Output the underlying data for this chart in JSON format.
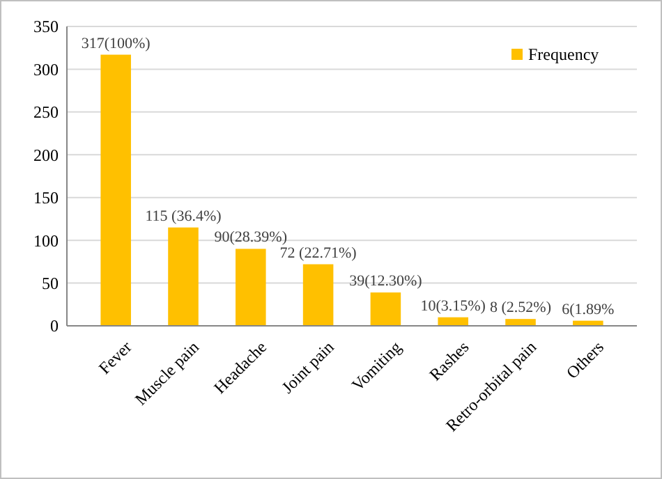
{
  "chart_data": {
    "type": "bar",
    "categories": [
      "Fever",
      "Muscle pain",
      "Headache",
      "Joint pain",
      "Vomiting",
      "Rashes",
      "Retro-orbital pain",
      "Others"
    ],
    "series": [
      {
        "name": "Frequency",
        "color": "#ffc000",
        "values": [
          317,
          115,
          90,
          72,
          39,
          10,
          8,
          6
        ],
        "value_labels": [
          "317(100%)",
          "115 (36.4%)",
          "90(28.39%)",
          "72 (22.71%)",
          "39(12.30%)",
          "10(3.15%)",
          "8 (2.52%)",
          "6(1.89%"
        ]
      }
    ],
    "ylim": [
      0,
      350
    ],
    "yticks": [
      0,
      50,
      100,
      150,
      200,
      250,
      300,
      350
    ],
    "grid": "y",
    "legend": "top right"
  }
}
